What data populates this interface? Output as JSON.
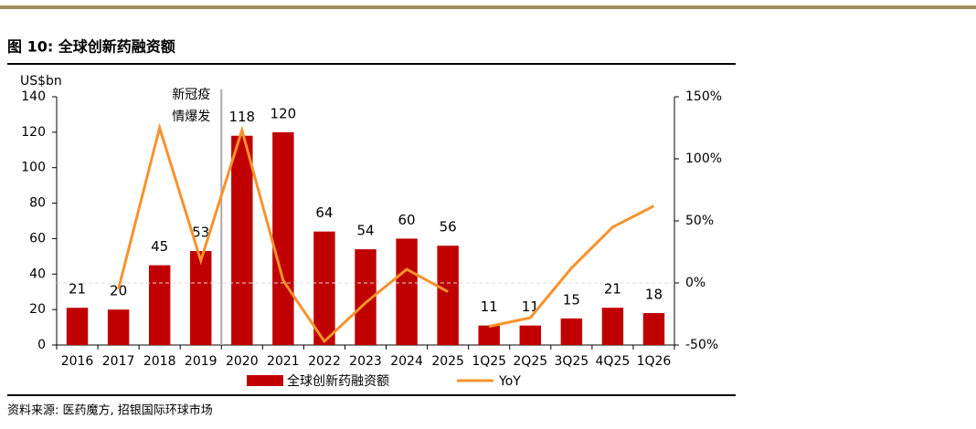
{
  "chart_data": {
    "type": "bar_line",
    "title": "图 10: 全球创新药融资额",
    "y_unit": "US$bn",
    "annotation": "新冠疫情爆发",
    "source": "资料来源: 医药魔方, 招银国际环球市场",
    "categories": [
      "2016",
      "2017",
      "2018",
      "2019",
      "2020",
      "2021",
      "2022",
      "2023",
      "2024",
      "2025",
      "1Q25",
      "2Q25",
      "3Q25",
      "4Q25",
      "1Q26"
    ],
    "series": [
      {
        "name": "全球创新药融资额",
        "color": "#c00000",
        "values": [
          21,
          20,
          45,
          53,
          118,
          120,
          64,
          54,
          60,
          56,
          11,
          11,
          15,
          21,
          18
        ]
      },
      {
        "name": "YoY",
        "color": "#f7922b",
        "axis": "y2",
        "values": [
          null,
          -5,
          125,
          18,
          123,
          2,
          -47,
          -16,
          11,
          -7,
          null,
          null,
          null,
          null,
          null
        ]
      },
      {
        "color": "#f7922b",
        "axis": "y2",
        "values": [
          null,
          null,
          null,
          null,
          null,
          null,
          null,
          null,
          null,
          null,
          -35,
          -28,
          12,
          45,
          62
        ]
      }
    ],
    "ylim": [
      0,
      140
    ],
    "yticks": [
      0,
      20,
      40,
      60,
      80,
      100,
      120,
      140
    ],
    "y2lim": [
      -50,
      150
    ],
    "y2ticks": [
      {
        "value": -50,
        "label": "-50%"
      },
      {
        "value": 0,
        "label": "0%"
      },
      {
        "value": 50,
        "label": "50%"
      },
      {
        "value": 100,
        "label": "100%"
      },
      {
        "value": 150,
        "label": "150%"
      }
    ],
    "annotation_after_index": 3
  }
}
